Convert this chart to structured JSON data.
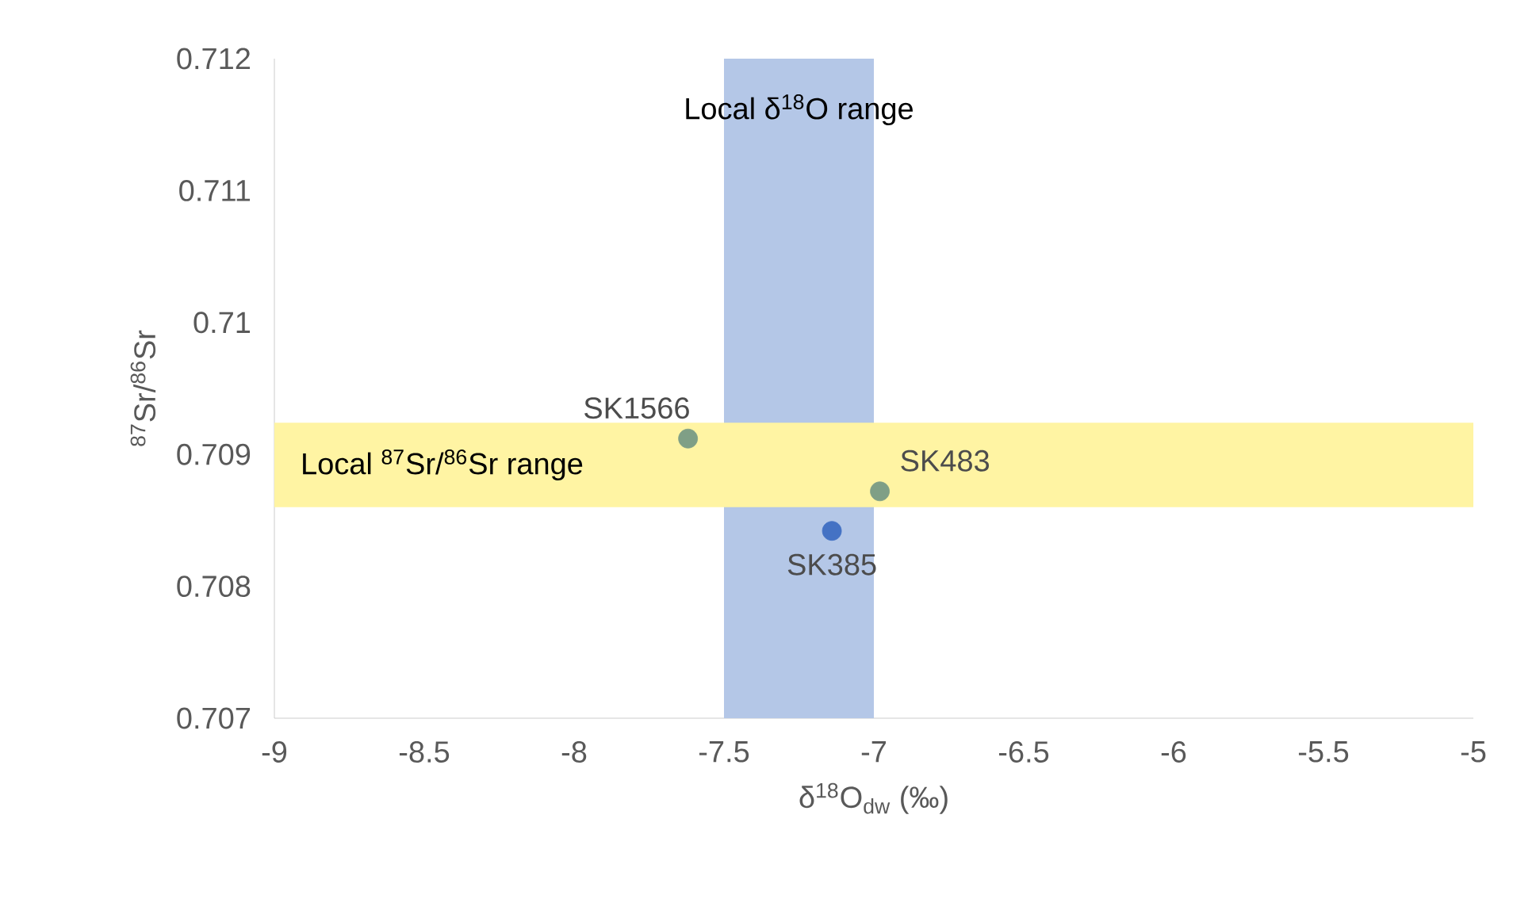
{
  "chart_data": {
    "type": "scatter",
    "xlabel": "δ$^{18}$O$_{dw}$ (‰)",
    "ylabel": "$^{87}$Sr/$^{86}$Sr",
    "xlim": [
      -9,
      -5
    ],
    "ylim": [
      0.707,
      0.712
    ],
    "xticks": [
      -9,
      -8.5,
      -8,
      -7.5,
      -7,
      -6.5,
      -6,
      -5.5,
      -5
    ],
    "yticks": [
      0.707,
      0.708,
      0.709,
      0.71,
      0.711,
      0.712
    ],
    "marker": "circle",
    "grid": false,
    "series": [
      {
        "name": "SK1566",
        "color": "#7f9f86",
        "x": [
          -7.62
        ],
        "values": [
          0.70912
        ]
      },
      {
        "name": "SK483",
        "color": "#7f9f86",
        "x": [
          -6.98
        ],
        "values": [
          0.70872
        ]
      },
      {
        "name": "SK385",
        "color": "#4472c4",
        "x": [
          -7.14
        ],
        "values": [
          0.70842
        ]
      }
    ],
    "bands": [
      {
        "axis": "x",
        "from": -7.5,
        "to": -7.0,
        "label": "Local δ$^{18}$O range",
        "color": "#b4c7e7"
      },
      {
        "axis": "y",
        "from": 0.7086,
        "to": 0.70924,
        "label": "Local $^{87}$Sr/$^{86}$Sr range",
        "color": "#fff4a3"
      }
    ]
  }
}
